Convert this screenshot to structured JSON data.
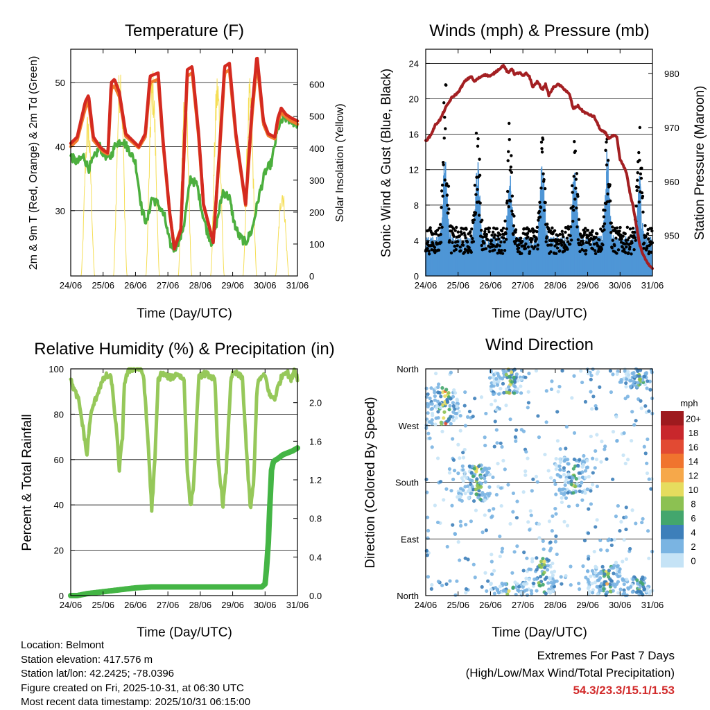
{
  "chart_data": [
    {
      "type": "line",
      "title": "Temperature (F)",
      "xlabel": "Time (Day/UTC)",
      "ylabel": "2m & 9m T (Red, Orange) & 2m Td (Green)",
      "y2label": "Solar Insolation (Yellow)",
      "x_ticks": [
        "24/06",
        "25/06",
        "26/06",
        "27/06",
        "28/06",
        "29/06",
        "30/06",
        "31/06"
      ],
      "xlim": [
        0,
        7
      ],
      "ylim": [
        19.8,
        55.2
      ],
      "y_ticks": [
        30,
        40,
        50
      ],
      "y2lim": [
        0,
        710
      ],
      "y2_ticks": [
        0,
        100,
        200,
        300,
        400,
        500,
        600
      ],
      "colors": {
        "t2m": "#d42a20",
        "t9m": "#f07a2c",
        "td": "#4caf3e",
        "solar": "#f5de55"
      },
      "daily_high_temp_f": [
        47.5,
        50.5,
        51.5,
        52.5,
        53.0,
        54.3,
        46.5
      ],
      "daily_low_temp_f": [
        39.5,
        35.0,
        36.5,
        23.3,
        25.0,
        30.5,
        43.5
      ],
      "daily_peak_solar_wm2": [
        520,
        690,
        655,
        640,
        650,
        620,
        290
      ],
      "series": [
        {
          "name": "2m T",
          "color": "#d42a20",
          "x": [
            0.0,
            0.2,
            0.45,
            0.55,
            0.7,
            0.9,
            1.0,
            1.15,
            1.25,
            1.35,
            1.5,
            1.7,
            1.9,
            2.1,
            2.3,
            2.45,
            2.7,
            2.85,
            3.05,
            3.2,
            3.4,
            3.6,
            3.75,
            3.95,
            4.1,
            4.4,
            4.6,
            4.75,
            4.9,
            5.1,
            5.4,
            5.6,
            5.75,
            5.95,
            6.1,
            6.3,
            6.4,
            6.5,
            6.65,
            6.8,
            7.0
          ],
          "y": [
            40.5,
            41.5,
            47.0,
            48.0,
            41.5,
            40.0,
            39.5,
            39.0,
            50.0,
            50.5,
            48.5,
            42.0,
            41.0,
            40.0,
            42.0,
            51.0,
            51.5,
            41.0,
            30.0,
            24.0,
            27.0,
            52.0,
            52.5,
            42.0,
            31.0,
            25.0,
            40.0,
            52.5,
            53.0,
            42.0,
            31.0,
            46.0,
            54.3,
            44.0,
            42.0,
            41.5,
            44.5,
            46.0,
            45.0,
            44.5,
            44.0
          ]
        },
        {
          "name": "9m T",
          "color": "#f07a2c",
          "x": [
            0.0,
            0.2,
            0.45,
            0.55,
            0.7,
            0.9,
            1.0,
            1.15,
            1.25,
            1.35,
            1.5,
            1.7,
            1.9,
            2.1,
            2.3,
            2.45,
            2.7,
            2.85,
            3.05,
            3.2,
            3.4,
            3.6,
            3.75,
            3.95,
            4.1,
            4.4,
            4.6,
            4.75,
            4.9,
            5.1,
            5.4,
            5.6,
            5.75,
            5.95,
            6.1,
            6.3,
            6.4,
            6.5,
            6.65,
            6.8,
            7.0
          ],
          "y": [
            40.0,
            41.0,
            46.0,
            47.0,
            41.0,
            39.8,
            39.2,
            38.8,
            49.0,
            49.5,
            47.8,
            41.6,
            40.7,
            39.8,
            41.5,
            50.0,
            50.5,
            40.5,
            29.8,
            24.2,
            27.2,
            51.0,
            51.5,
            41.5,
            30.8,
            25.2,
            39.5,
            51.5,
            52.0,
            41.5,
            30.8,
            45.0,
            53.3,
            43.5,
            41.7,
            41.2,
            44.0,
            45.3,
            44.6,
            44.0,
            43.5
          ]
        },
        {
          "name": "2m Td",
          "color": "#4caf3e",
          "x": [
            0.0,
            0.2,
            0.4,
            0.55,
            0.7,
            0.9,
            1.0,
            1.2,
            1.4,
            1.6,
            1.8,
            2.0,
            2.2,
            2.35,
            2.5,
            2.7,
            2.9,
            3.05,
            3.2,
            3.4,
            3.5,
            3.7,
            3.9,
            4.05,
            4.2,
            4.35,
            4.5,
            4.7,
            4.9,
            5.05,
            5.2,
            5.4,
            5.6,
            5.8,
            6.0,
            6.2,
            6.4,
            6.6,
            6.8,
            7.0
          ],
          "y": [
            38.5,
            37.5,
            38.5,
            36.5,
            38.0,
            40.0,
            39.0,
            38.0,
            40.5,
            41.0,
            39.5,
            37.5,
            30.0,
            28.0,
            32.0,
            31.0,
            29.0,
            25.0,
            24.0,
            26.0,
            28.0,
            35.0,
            34.0,
            30.0,
            27.0,
            25.0,
            28.0,
            33.0,
            32.0,
            28.0,
            26.0,
            25.0,
            27.0,
            32.0,
            36.0,
            37.5,
            43.0,
            44.5,
            44.0,
            43.5
          ]
        }
      ]
    },
    {
      "type": "scatter",
      "title": "Winds (mph) & Pressure (mb)",
      "xlabel": "Time (Day/UTC)",
      "ylabel": "Sonic Wind & Gust (Blue, Black)",
      "y2label": "Station Pressure (Maroon)",
      "x_ticks": [
        "24/06",
        "25/06",
        "26/06",
        "27/06",
        "28/06",
        "29/06",
        "30/06",
        "31/06"
      ],
      "xlim": [
        0,
        7
      ],
      "ylim": [
        0,
        25.6
      ],
      "y_ticks": [
        0,
        4,
        8,
        12,
        16,
        20,
        24
      ],
      "y2lim": [
        942.5,
        984.5
      ],
      "y2_ticks": [
        950,
        960,
        970,
        980
      ],
      "colors": {
        "wind": "#4f96d6",
        "gust": "#000000",
        "pressure": "#a31f22"
      },
      "daily_peak_wind_mph": [
        15.1,
        13.5,
        12.0,
        14.0,
        13.0,
        14.5,
        12.0
      ],
      "daily_peak_gust_mph": [
        23.8,
        18.7,
        18.4,
        17.5,
        16.8,
        18.0,
        17.5
      ],
      "series": [
        {
          "name": "Station Pressure",
          "color": "#a31f22",
          "x": [
            0.0,
            0.15,
            0.3,
            0.45,
            0.6,
            0.8,
            1.0,
            1.2,
            1.4,
            1.5,
            1.6,
            1.8,
            2.0,
            2.2,
            2.4,
            2.55,
            2.65,
            2.75,
            2.9,
            3.0,
            3.1,
            3.2,
            3.3,
            3.45,
            3.6,
            3.7,
            3.8,
            3.95,
            4.1,
            4.3,
            4.45,
            4.55,
            4.7,
            4.85,
            5.0,
            5.2,
            5.4,
            5.55,
            5.65,
            5.8,
            5.9,
            6.0,
            6.1,
            6.2,
            6.3,
            6.4,
            6.5,
            6.6,
            6.7,
            6.8,
            6.9,
            7.0
          ],
          "y": [
            967.5,
            968.5,
            970.5,
            971.5,
            973.5,
            975.5,
            976.5,
            978.5,
            979.5,
            978.5,
            979.0,
            979.8,
            979.5,
            980.5,
            981.5,
            980.0,
            981.0,
            979.8,
            980.2,
            979.5,
            980.0,
            979.5,
            977.5,
            978.5,
            977.0,
            978.0,
            976.0,
            977.5,
            978.0,
            977.0,
            976.0,
            973.5,
            974.0,
            973.0,
            972.5,
            972.0,
            969.5,
            969.0,
            968.0,
            968.5,
            968.2,
            964.0,
            963.0,
            961.5,
            958.0,
            955.5,
            952.0,
            948.5,
            946.5,
            945.5,
            944.5,
            944.0
          ]
        }
      ]
    },
    {
      "type": "line",
      "title": "Relative Humidity (%) & Precipitation (in)",
      "xlabel": "Time (Day/UTC)",
      "ylabel": "Percent & Total Rainfall",
      "x_ticks": [
        "24/06",
        "25/06",
        "26/06",
        "27/06",
        "28/06",
        "29/06",
        "30/06",
        "31/06"
      ],
      "xlim": [
        0,
        7
      ],
      "ylim": [
        0,
        100
      ],
      "y_ticks": [
        0,
        20,
        40,
        60,
        80,
        100
      ],
      "y2lim": [
        0,
        2.35
      ],
      "y2_ticks": [
        0.0,
        0.4,
        0.8,
        1.2,
        1.6,
        2.0
      ],
      "colors": {
        "rh": "#96c85a",
        "precip": "#44b545"
      },
      "daily_min_rh_pct": [
        58,
        55,
        37,
        38,
        39,
        38,
        87
      ],
      "series": [
        {
          "name": "Relative Humidity",
          "color": "#96c85a",
          "x": [
            0.0,
            0.1,
            0.25,
            0.4,
            0.5,
            0.6,
            0.7,
            0.8,
            0.9,
            1.0,
            1.1,
            1.25,
            1.4,
            1.5,
            1.6,
            1.65,
            1.75,
            1.85,
            2.0,
            2.15,
            2.25,
            2.4,
            2.5,
            2.6,
            2.7,
            2.8,
            2.95,
            3.1,
            3.3,
            3.5,
            3.6,
            3.7,
            3.8,
            3.95,
            4.1,
            4.3,
            4.45,
            4.55,
            4.7,
            4.8,
            4.95,
            5.1,
            5.3,
            5.45,
            5.55,
            5.65,
            5.75,
            5.85,
            6.0,
            6.15,
            6.3,
            6.4,
            6.5,
            6.6,
            6.7,
            6.8,
            6.9,
            7.0
          ],
          "y": [
            95,
            91,
            86,
            72,
            62,
            78,
            84,
            88,
            92,
            95,
            97,
            96,
            75,
            56,
            70,
            93,
            98,
            100,
            100,
            100,
            97,
            65,
            38,
            60,
            95,
            98,
            97,
            96,
            98,
            95,
            55,
            39,
            50,
            96,
            98,
            97,
            95,
            60,
            40,
            55,
            97,
            98,
            96,
            58,
            38,
            50,
            92,
            96,
            97,
            88,
            87,
            92,
            96,
            99,
            98,
            95,
            100,
            96
          ]
        },
        {
          "name": "Total Rainfall",
          "color": "#44b545",
          "x": [
            0.0,
            0.2,
            0.5,
            1.0,
            1.5,
            2.0,
            2.5,
            3.0,
            3.5,
            4.0,
            4.5,
            5.0,
            5.5,
            5.9,
            6.0,
            6.05,
            6.1,
            6.15,
            6.2,
            6.25,
            6.3,
            6.4,
            6.55,
            6.7,
            6.85,
            7.0
          ],
          "y": [
            0.0,
            0.0,
            0.02,
            0.04,
            0.06,
            0.08,
            0.09,
            0.09,
            0.09,
            0.09,
            0.09,
            0.09,
            0.09,
            0.09,
            0.12,
            0.3,
            0.55,
            0.95,
            1.3,
            1.38,
            1.4,
            1.42,
            1.46,
            1.48,
            1.5,
            1.53
          ]
        }
      ]
    },
    {
      "type": "scatter",
      "title": "Wind Direction",
      "xlabel": "Time (Day/UTC)",
      "ylabel": "Direction (Colored By Speed)",
      "x_ticks": [
        "24/06",
        "25/06",
        "26/06",
        "27/06",
        "28/06",
        "29/06",
        "30/06",
        "31/06"
      ],
      "xlim": [
        0,
        7
      ],
      "ylim": [
        0,
        360
      ],
      "y_ticks": [
        {
          "value": 0,
          "label": "North"
        },
        {
          "value": 90,
          "label": "East"
        },
        {
          "value": 180,
          "label": "South"
        },
        {
          "value": 270,
          "label": "West"
        },
        {
          "value": 360,
          "label": "North"
        }
      ],
      "colorbar": {
        "title": "mph",
        "levels": [
          "20+",
          "18",
          "16",
          "14",
          "12",
          "10",
          "8",
          "6",
          "4",
          "2",
          "0"
        ],
        "colors": [
          "#9e1a1e",
          "#c8272c",
          "#e24a33",
          "#f0742e",
          "#f6a84a",
          "#e6dc5e",
          "#8cc152",
          "#43a66d",
          "#3d7fba",
          "#7ab4e2",
          "#c5e3f6"
        ]
      },
      "dominant_direction_deg_by_day": [
        300,
        180,
        350,
        30,
        190,
        20,
        360
      ],
      "peak_speed_mph_by_day": [
        13,
        10,
        11,
        9,
        9,
        10,
        8
      ]
    }
  ],
  "footer": {
    "location": "Location: Belmont",
    "elevation": "Station elevation: 417.576 m",
    "latlon": "Station lat/lon: 42.2425; -78.0396",
    "created": "Figure created on Fri, 2025-10-31, at 06:30 UTC",
    "latest": "Most recent data timestamp: 2025/10/31 06:15:00"
  },
  "extremes": {
    "title": "Extremes For Past 7 Days",
    "subtitle": "(High/Low/Max Wind/Total Precipitation)",
    "values": "54.3/23.3/15.1/1.53"
  }
}
